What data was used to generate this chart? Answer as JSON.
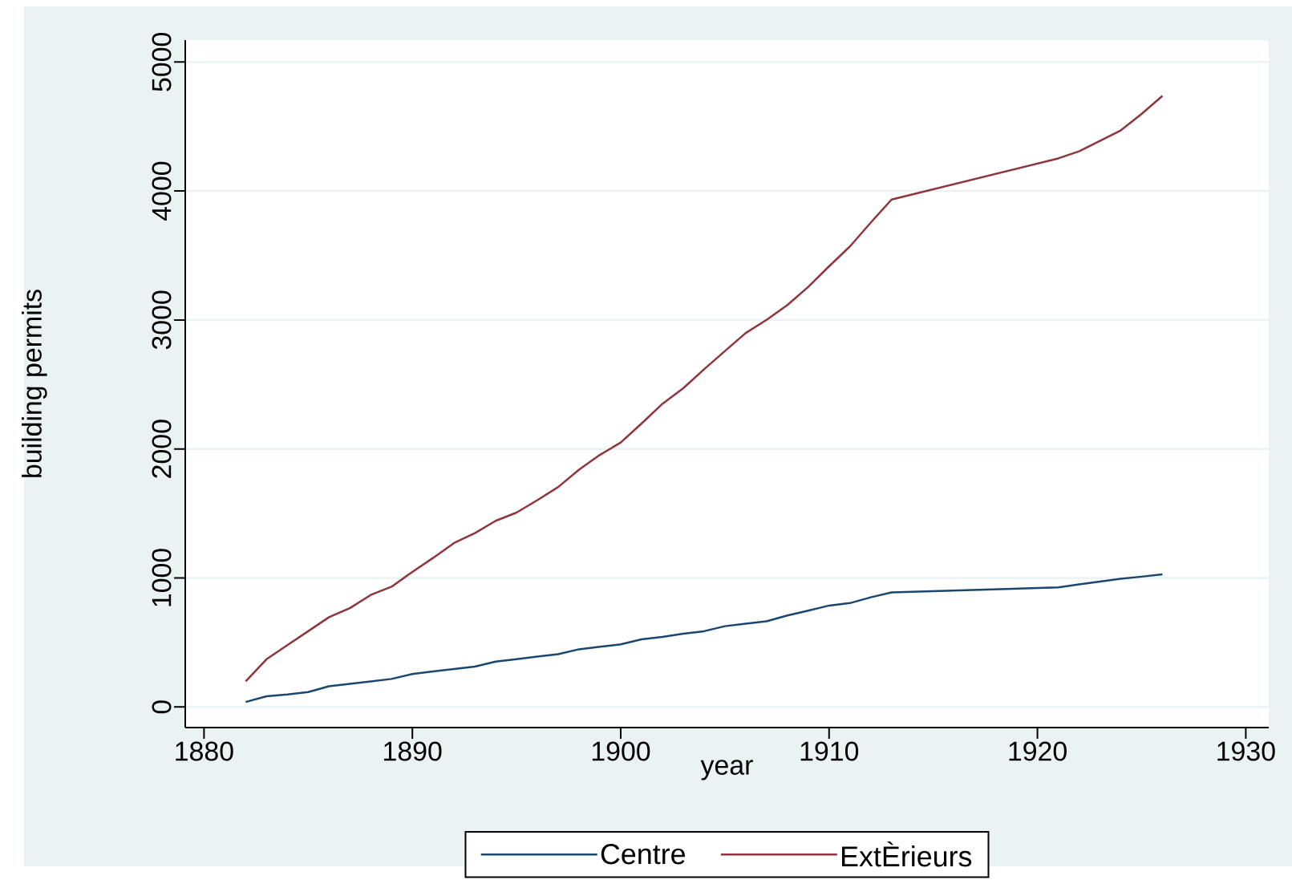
{
  "chart_data": {
    "type": "line",
    "xlabel": "year",
    "ylabel": "building permits",
    "x": [
      1882,
      1883,
      1884,
      1885,
      1886,
      1887,
      1888,
      1889,
      1890,
      1891,
      1892,
      1893,
      1894,
      1895,
      1896,
      1897,
      1898,
      1899,
      1900,
      1901,
      1902,
      1903,
      1904,
      1905,
      1906,
      1907,
      1908,
      1909,
      1910,
      1911,
      1912,
      1913,
      1921,
      1922,
      1924,
      1925,
      1926
    ],
    "series": [
      {
        "name": "Centre",
        "color": "#1a476f",
        "values": [
          38,
          83,
          96,
          115,
          160,
          179,
          198,
          217,
          255,
          275,
          294,
          313,
          351,
          370,
          390,
          409,
          447,
          466,
          485,
          524,
          543,
          568,
          587,
          626,
          645,
          664,
          709,
          747,
          786,
          805,
          850,
          888,
          927,
          950,
          993,
          1010,
          1028
        ]
      },
      {
        "name": "ExtÈrieurs",
        "color": "#90353b",
        "values": [
          198,
          370,
          479,
          587,
          696,
          766,
          868,
          932,
          1047,
          1156,
          1271,
          1347,
          1443,
          1507,
          1603,
          1705,
          1839,
          1954,
          2050,
          2197,
          2350,
          2471,
          2618,
          2759,
          2899,
          3001,
          3116,
          3257,
          3416,
          3570,
          3755,
          3934,
          4253,
          4308,
          4470,
          4598,
          4738
        ]
      }
    ],
    "xlim": [
      1879.1,
      1931.1
    ],
    "ylim": [
      -160,
      5170
    ],
    "xticks": [
      1880,
      1890,
      1900,
      1910,
      1920,
      1930
    ],
    "yticks": [
      0,
      1000,
      2000,
      3000,
      4000,
      5000
    ],
    "grid": "y",
    "legend": "bottom"
  }
}
